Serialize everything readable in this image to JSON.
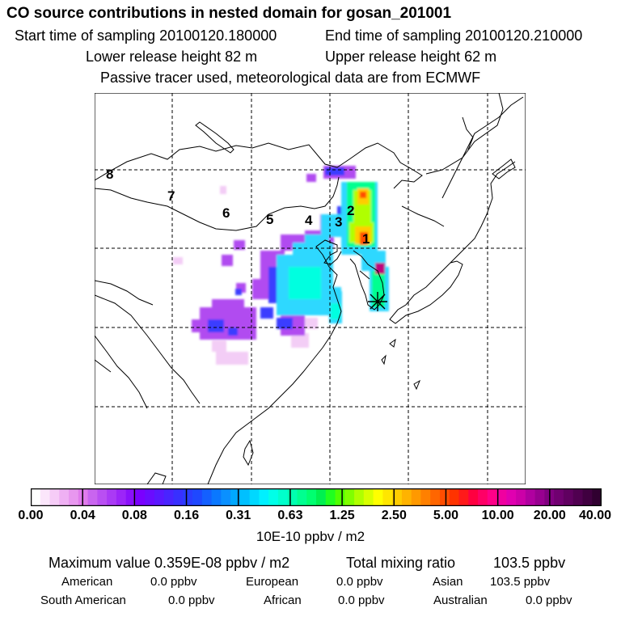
{
  "title": "CO  source contributions in nested domain for gosan_201001",
  "start_label": "Start time of sampling 20100120.180000",
  "end_label": "End time of sampling 20100120.210000",
  "lower_label": "Lower release height   82 m",
  "upper_label": "Upper release height   62 m",
  "info_line": "Passive tracer used, meteorological data are from ECMWF",
  "map": {
    "track_numbers": [
      "1",
      "2",
      "3",
      "4",
      "5",
      "6",
      "7",
      "8"
    ],
    "receptor_marker": "asterisk-marker",
    "colors": {
      "land_outline": "#000000",
      "grid": "#000000"
    }
  },
  "colorbar": {
    "tick_labels": [
      "0.00",
      "0.04",
      "0.08",
      "0.16",
      "0.31",
      "0.63",
      "1.25",
      "2.50",
      "5.00",
      "10.00",
      "20.00",
      "40.00"
    ],
    "colors": [
      "#ffffff",
      "#fbe6fb",
      "#f6ccf7",
      "#efb0f3",
      "#e897ef",
      "#e07bec",
      "#c965ef",
      "#b94ff2",
      "#aa3af5",
      "#9c25f8",
      "#8a10fb",
      "#7a00ff",
      "#6a0cff",
      "#5a18ff",
      "#4924ff",
      "#3830ff",
      "#2a3cff",
      "#1f48ff",
      "#1460ff",
      "#0a78ff",
      "#0a90ff",
      "#00a8ff",
      "#00c0ff",
      "#00d8ff",
      "#00f0ff",
      "#00ffe8",
      "#00ffcc",
      "#00ffb0",
      "#00ff90",
      "#00ff70",
      "#00f050",
      "#20ff20",
      "#50ff00",
      "#80ff00",
      "#b0ff00",
      "#d8ff00",
      "#ffff00",
      "#ffe600",
      "#ffcc00",
      "#ffb300",
      "#ff9900",
      "#ff8000",
      "#ff6600",
      "#ff4d00",
      "#ff3300",
      "#ff1a1a",
      "#ff0040",
      "#ff0066",
      "#ff0088",
      "#f000a0",
      "#e000b0",
      "#cc00a8",
      "#b000a0",
      "#980090",
      "#800080",
      "#700070",
      "#600060",
      "#500050",
      "#400040",
      "#300030"
    ],
    "unit": "10E-10 ppbv / m2"
  },
  "stats": {
    "max_label": "Maximum value  0.359E-08 ppbv / m2",
    "total_label": "Total mixing ratio",
    "total_value": "103.5 ppbv",
    "american_label": "American",
    "american_value": "0.0 ppbv",
    "european_label": "European",
    "european_value": "0.0 ppbv",
    "asian_label": "Asian",
    "asian_value": "103.5 ppbv",
    "south_american_label": "South American",
    "south_american_value": "0.0 ppbv",
    "african_label": "African",
    "african_value": "0.0 ppbv",
    "australian_label": "Australian",
    "australian_value": "0.0 ppbv"
  }
}
